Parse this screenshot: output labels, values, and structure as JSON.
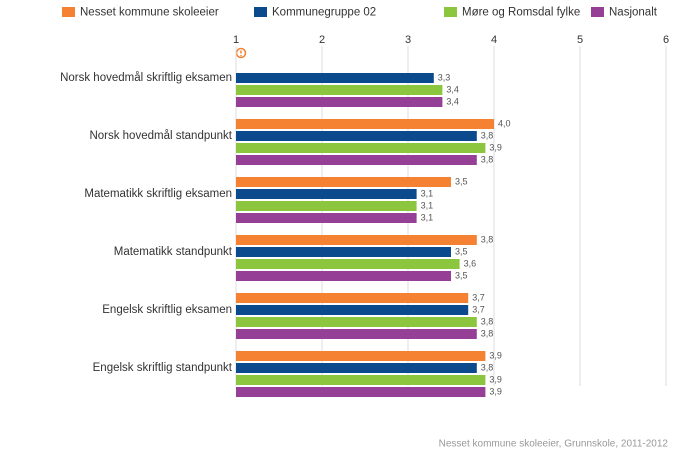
{
  "chart_data": {
    "type": "hbar",
    "categories": [
      "Norsk hovedmål skriftlig eksamen",
      "Norsk hovedmål standpunkt",
      "Matematikk skriftlig eksamen",
      "Matematikk standpunkt",
      "Engelsk skriftlig eksamen",
      "Engelsk skriftlig standpunkt"
    ],
    "series": [
      {
        "name": "Nesset kommune skoleeier",
        "color": "#f58233",
        "values": [
          null,
          4.0,
          3.5,
          3.8,
          3.7,
          3.9
        ],
        "value_labels": [
          null,
          "4,0",
          "3,5",
          "3,8",
          "3,7",
          "3,9"
        ]
      },
      {
        "name": "Kommunegruppe 02",
        "color": "#0b4a8c",
        "values": [
          3.3,
          3.8,
          3.1,
          3.5,
          3.7,
          3.8
        ],
        "value_labels": [
          "3,3",
          "3,8",
          "3,1",
          "3,5",
          "3,7",
          "3,8"
        ]
      },
      {
        "name": "Møre og Romsdal fylke",
        "color": "#8cc63f",
        "values": [
          3.4,
          3.9,
          3.1,
          3.6,
          3.8,
          3.9
        ],
        "value_labels": [
          "3,4",
          "3,9",
          "3,1",
          "3,6",
          "3,8",
          "3,9"
        ]
      },
      {
        "name": "Nasjonalt",
        "color": "#963f97",
        "values": [
          3.4,
          3.8,
          3.1,
          3.5,
          3.8,
          3.9
        ],
        "value_labels": [
          "3,4",
          "3,8",
          "3,1",
          "3,5",
          "3,8",
          "3,9"
        ]
      }
    ],
    "xlim": [
      1,
      6
    ],
    "xticks": [
      1,
      2,
      3,
      4,
      5,
      6
    ],
    "grid": true,
    "footnote": "Nesset kommune skoleeier, Grunnskole, 2011-2012"
  }
}
